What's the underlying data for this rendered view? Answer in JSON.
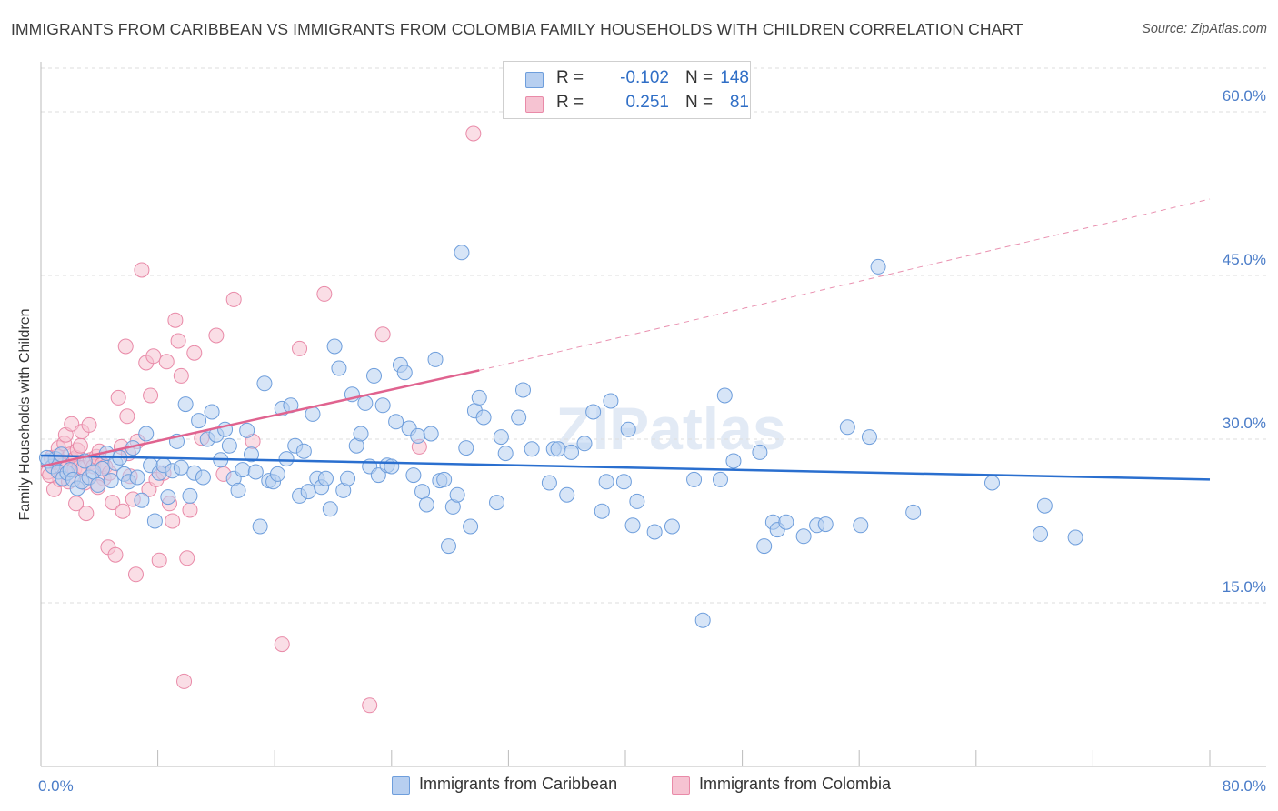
{
  "title": "IMMIGRANTS FROM CARIBBEAN VS IMMIGRANTS FROM COLOMBIA FAMILY HOUSEHOLDS WITH CHILDREN CORRELATION CHART",
  "source": "Source: ZipAtlas.com",
  "watermark": "ZIPatlas",
  "colors": {
    "caribbean_fill": "#b7cff0",
    "caribbean_stroke": "#6e9edc",
    "caribbean_line": "#2a6fcf",
    "colombia_fill": "#f6c3d2",
    "colombia_stroke": "#e98aa8",
    "colombia_line": "#e0638f",
    "tick_text": "#4a7cc8",
    "grid": "#dddddd"
  },
  "legend": {
    "rows": [
      {
        "r_label": "R =",
        "r_value": "-0.102",
        "n_label": "N =",
        "n_value": "148"
      },
      {
        "r_label": "R =",
        "r_value": "0.251",
        "n_label": "N =",
        "n_value": "81"
      }
    ]
  },
  "bottom_legend": [
    "Immigrants from Caribbean",
    "Immigrants from Colombia"
  ],
  "chart_data": {
    "type": "scatter",
    "title": "IMMIGRANTS FROM CARIBBEAN VS IMMIGRANTS FROM COLOMBIA FAMILY HOUSEHOLDS WITH CHILDREN CORRELATION CHART",
    "xlabel": "",
    "ylabel": "Family Households with Children",
    "xlim": [
      0,
      80
    ],
    "ylim": [
      0,
      64
    ],
    "x_tick_labels": [
      "0.0%",
      "80.0%"
    ],
    "y_ticks": [
      15,
      30,
      45,
      60
    ],
    "y_tick_labels": [
      "15.0%",
      "30.0%",
      "45.0%",
      "60.0%"
    ],
    "grid": "horizontal dashed",
    "legend_position": "top-center",
    "series": [
      {
        "name": "Immigrants from Caribbean",
        "R": -0.102,
        "N": 148,
        "trend": {
          "x": [
            0,
            80
          ],
          "y": [
            28.5,
            26.3
          ],
          "style": "solid"
        },
        "points": [
          [
            0.5,
            28.0
          ],
          [
            0.8,
            27.5
          ],
          [
            1.0,
            28.2
          ],
          [
            1.2,
            27.0
          ],
          [
            1.5,
            26.4
          ],
          [
            1.8,
            26.9
          ],
          [
            2.0,
            27.2
          ],
          [
            2.2,
            26.3
          ],
          [
            2.5,
            25.5
          ],
          [
            2.8,
            26.1
          ],
          [
            3.0,
            28.0
          ],
          [
            3.3,
            26.5
          ],
          [
            3.6,
            27.0
          ],
          [
            3.9,
            25.8
          ],
          [
            4.2,
            27.3
          ],
          [
            4.5,
            28.7
          ],
          [
            4.8,
            26.2
          ],
          [
            5.1,
            27.8
          ],
          [
            5.4,
            28.3
          ],
          [
            5.7,
            26.8
          ],
          [
            6.0,
            26.1
          ],
          [
            6.3,
            29.2
          ],
          [
            6.6,
            26.5
          ],
          [
            6.9,
            24.4
          ],
          [
            7.2,
            30.5
          ],
          [
            7.5,
            27.6
          ],
          [
            7.8,
            22.5
          ],
          [
            8.1,
            26.9
          ],
          [
            8.4,
            27.6
          ],
          [
            8.7,
            24.7
          ],
          [
            9.0,
            27.1
          ],
          [
            9.3,
            29.8
          ],
          [
            9.6,
            27.4
          ],
          [
            9.9,
            33.2
          ],
          [
            10.2,
            24.8
          ],
          [
            10.5,
            26.9
          ],
          [
            10.8,
            31.7
          ],
          [
            11.1,
            26.5
          ],
          [
            11.4,
            30.0
          ],
          [
            11.7,
            32.5
          ],
          [
            12.0,
            30.4
          ],
          [
            12.3,
            28.1
          ],
          [
            12.6,
            30.9
          ],
          [
            12.9,
            29.4
          ],
          [
            13.2,
            26.4
          ],
          [
            13.5,
            25.3
          ],
          [
            13.8,
            27.2
          ],
          [
            14.1,
            30.8
          ],
          [
            14.4,
            28.6
          ],
          [
            14.7,
            27.0
          ],
          [
            15.0,
            22.0
          ],
          [
            15.3,
            35.1
          ],
          [
            15.6,
            26.2
          ],
          [
            15.9,
            26.1
          ],
          [
            16.2,
            26.8
          ],
          [
            16.5,
            32.8
          ],
          [
            16.8,
            28.2
          ],
          [
            17.1,
            33.1
          ],
          [
            17.4,
            29.4
          ],
          [
            17.7,
            24.8
          ],
          [
            18.0,
            28.9
          ],
          [
            18.3,
            25.2
          ],
          [
            18.6,
            32.3
          ],
          [
            18.9,
            26.4
          ],
          [
            19.2,
            25.6
          ],
          [
            19.5,
            26.4
          ],
          [
            19.8,
            23.6
          ],
          [
            20.1,
            38.5
          ],
          [
            20.4,
            36.5
          ],
          [
            20.7,
            25.3
          ],
          [
            21.0,
            26.4
          ],
          [
            21.3,
            34.1
          ],
          [
            21.6,
            29.4
          ],
          [
            21.9,
            30.5
          ],
          [
            22.2,
            33.3
          ],
          [
            22.5,
            27.5
          ],
          [
            22.8,
            35.8
          ],
          [
            23.1,
            26.7
          ],
          [
            23.4,
            33.1
          ],
          [
            23.7,
            27.6
          ],
          [
            24.0,
            27.5
          ],
          [
            24.3,
            31.6
          ],
          [
            24.6,
            36.8
          ],
          [
            24.9,
            36.1
          ],
          [
            25.2,
            31.0
          ],
          [
            25.5,
            26.7
          ],
          [
            25.8,
            30.3
          ],
          [
            26.1,
            25.2
          ],
          [
            26.4,
            24.0
          ],
          [
            26.7,
            30.5
          ],
          [
            27.0,
            37.3
          ],
          [
            27.3,
            26.2
          ],
          [
            27.6,
            26.3
          ],
          [
            27.9,
            20.2
          ],
          [
            28.2,
            23.8
          ],
          [
            28.5,
            24.9
          ],
          [
            28.8,
            47.1
          ],
          [
            29.1,
            29.2
          ],
          [
            29.4,
            22.0
          ],
          [
            29.7,
            32.6
          ],
          [
            30.0,
            33.8
          ],
          [
            30.3,
            32.0
          ],
          [
            31.2,
            24.2
          ],
          [
            31.5,
            30.2
          ],
          [
            31.8,
            28.7
          ],
          [
            32.7,
            32.0
          ],
          [
            33.0,
            34.5
          ],
          [
            33.6,
            29.1
          ],
          [
            34.8,
            26.0
          ],
          [
            35.1,
            29.1
          ],
          [
            35.4,
            29.1
          ],
          [
            36.0,
            24.9
          ],
          [
            36.3,
            28.8
          ],
          [
            37.2,
            29.6
          ],
          [
            37.8,
            32.5
          ],
          [
            38.4,
            23.4
          ],
          [
            38.7,
            26.1
          ],
          [
            39.0,
            33.5
          ],
          [
            39.9,
            26.1
          ],
          [
            40.2,
            30.9
          ],
          [
            40.5,
            22.1
          ],
          [
            40.8,
            24.3
          ],
          [
            42.0,
            21.5
          ],
          [
            43.2,
            22.0
          ],
          [
            44.7,
            26.3
          ],
          [
            45.3,
            13.4
          ],
          [
            46.5,
            26.3
          ],
          [
            46.8,
            34.0
          ],
          [
            47.4,
            28.0
          ],
          [
            49.2,
            28.8
          ],
          [
            49.5,
            20.2
          ],
          [
            50.1,
            22.4
          ],
          [
            50.4,
            21.7
          ],
          [
            51.0,
            22.4
          ],
          [
            52.2,
            21.1
          ],
          [
            53.1,
            22.1
          ],
          [
            53.7,
            22.2
          ],
          [
            55.2,
            31.1
          ],
          [
            56.1,
            22.1
          ],
          [
            56.7,
            30.2
          ],
          [
            57.3,
            45.8
          ],
          [
            59.7,
            23.3
          ],
          [
            65.1,
            26.0
          ],
          [
            68.4,
            21.3
          ],
          [
            68.7,
            23.9
          ],
          [
            70.8,
            21.0
          ],
          [
            0.4,
            28.3
          ],
          [
            1.4,
            28.6
          ]
        ]
      },
      {
        "name": "Immigrants from Colombia",
        "R": 0.251,
        "N": 81,
        "trend_solid": {
          "x": [
            0,
            30
          ],
          "y": [
            27.5,
            36.3
          ]
        },
        "trend_dashed": {
          "x": [
            30,
            80
          ],
          "y": [
            36.3,
            52.0
          ]
        },
        "points": [
          [
            0.5,
            27.0
          ],
          [
            0.7,
            28.3
          ],
          [
            0.9,
            25.4
          ],
          [
            1.0,
            27.9
          ],
          [
            1.1,
            28.4
          ],
          [
            1.2,
            29.2
          ],
          [
            1.3,
            26.3
          ],
          [
            1.4,
            28.0
          ],
          [
            1.5,
            27.6
          ],
          [
            1.6,
            29.6
          ],
          [
            1.7,
            30.4
          ],
          [
            1.8,
            27.4
          ],
          [
            1.9,
            26.1
          ],
          [
            2.0,
            28.6
          ],
          [
            2.1,
            31.4
          ],
          [
            2.2,
            28.1
          ],
          [
            2.3,
            27.3
          ],
          [
            2.4,
            28.3
          ],
          [
            2.5,
            29.0
          ],
          [
            2.6,
            27.4
          ],
          [
            2.7,
            29.4
          ],
          [
            2.8,
            30.7
          ],
          [
            2.9,
            27.4
          ],
          [
            3.0,
            26.0
          ],
          [
            3.1,
            23.2
          ],
          [
            3.3,
            31.3
          ],
          [
            3.4,
            28.1
          ],
          [
            3.5,
            27.9
          ],
          [
            3.6,
            27.5
          ],
          [
            3.8,
            28.4
          ],
          [
            4.0,
            28.9
          ],
          [
            4.2,
            27.7
          ],
          [
            4.3,
            26.4
          ],
          [
            4.4,
            27.5
          ],
          [
            4.6,
            20.1
          ],
          [
            4.7,
            26.9
          ],
          [
            4.9,
            24.2
          ],
          [
            5.1,
            19.4
          ],
          [
            5.3,
            33.8
          ],
          [
            5.5,
            29.3
          ],
          [
            5.6,
            23.4
          ],
          [
            5.8,
            38.5
          ],
          [
            5.9,
            32.1
          ],
          [
            6.1,
            26.6
          ],
          [
            6.3,
            24.5
          ],
          [
            6.5,
            17.6
          ],
          [
            6.6,
            29.8
          ],
          [
            6.9,
            45.5
          ],
          [
            7.2,
            37.0
          ],
          [
            7.4,
            25.4
          ],
          [
            7.5,
            34.0
          ],
          [
            7.7,
            37.6
          ],
          [
            7.9,
            26.3
          ],
          [
            8.1,
            18.9
          ],
          [
            8.4,
            26.9
          ],
          [
            8.6,
            37.1
          ],
          [
            8.8,
            24.1
          ],
          [
            9.0,
            22.5
          ],
          [
            9.2,
            40.9
          ],
          [
            9.4,
            39.0
          ],
          [
            9.6,
            35.8
          ],
          [
            9.8,
            7.8
          ],
          [
            10.0,
            19.1
          ],
          [
            10.2,
            23.5
          ],
          [
            10.5,
            37.9
          ],
          [
            11.0,
            30.1
          ],
          [
            12.0,
            39.5
          ],
          [
            12.5,
            26.8
          ],
          [
            13.2,
            42.8
          ],
          [
            14.5,
            29.8
          ],
          [
            16.5,
            11.2
          ],
          [
            17.7,
            38.3
          ],
          [
            19.4,
            43.3
          ],
          [
            22.5,
            5.6
          ],
          [
            23.4,
            39.6
          ],
          [
            25.9,
            29.3
          ],
          [
            29.6,
            58.0
          ],
          [
            0.6,
            26.7
          ],
          [
            2.4,
            24.1
          ],
          [
            3.9,
            25.6
          ],
          [
            6.0,
            28.7
          ]
        ]
      }
    ]
  }
}
